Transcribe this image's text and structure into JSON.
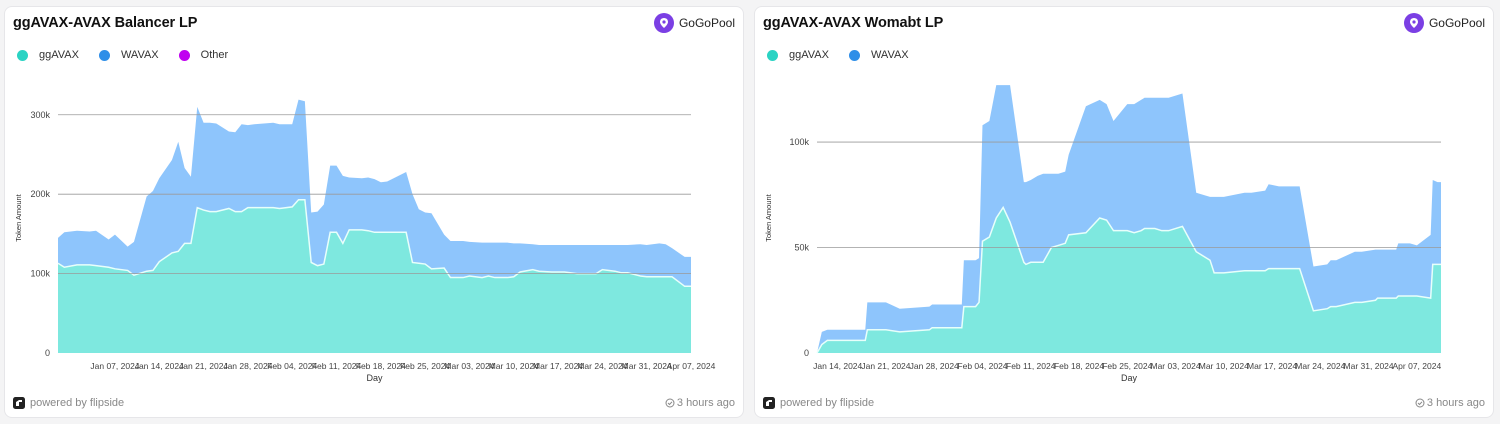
{
  "colors": {
    "ggAVAX": "#7ee8df",
    "WAVAX": "#8ec5fc",
    "Other": "#c000f0",
    "ggAVAX_line": "#e8fffb",
    "grid": "#9a9a9a"
  },
  "cards": [
    {
      "title": "ggAVAX-AVAX Balancer LP",
      "brand": "GoGoPool",
      "footer": {
        "powered": "powered by flipside",
        "updated": "3 hours ago"
      },
      "legend": [
        {
          "label": "ggAVAX",
          "color": "#2ad3c3"
        },
        {
          "label": "WAVAX",
          "color": "#2f8fe8"
        },
        {
          "label": "Other",
          "color": "#c000f0"
        }
      ]
    },
    {
      "title": "ggAVAX-AVAX Womabt LP",
      "brand": "GoGoPool",
      "footer": {
        "powered": "powered by flipside",
        "updated": "3 hours ago"
      },
      "legend": [
        {
          "label": "ggAVAX",
          "color": "#2ad3c3"
        },
        {
          "label": "WAVAX",
          "color": "#2f8fe8"
        }
      ]
    }
  ],
  "chart_data": [
    {
      "type": "area",
      "stacked": true,
      "title": "ggAVAX-AVAX Balancer LP",
      "xlabel": "Day",
      "ylabel": "Token Amount",
      "x_start": "2024-01-02",
      "x_end": "2024-04-11",
      "ylim": [
        0,
        340000
      ],
      "yticks": [
        0,
        100000,
        200000,
        300000
      ],
      "ytick_labels": [
        "0",
        "100k",
        "200k",
        "300k"
      ],
      "xtick_labels": [
        "Jan 07, 2024",
        "Jan 14, 2024",
        "Jan 21, 2024",
        "Jan 28, 2024",
        "Feb 04, 2024",
        "Feb 11, 2024",
        "Feb 18, 2024",
        "Feb 25, 2024",
        "Mar 03, 2024",
        "Mar 10, 2024",
        "Mar 17, 2024",
        "Mar 24, 2024",
        "Mar 31, 2024",
        "Apr 07, 2024"
      ],
      "x_days": [
        0,
        1,
        3,
        5,
        6,
        8,
        9,
        11,
        12,
        14,
        15,
        16,
        18,
        19,
        20,
        21,
        22,
        23,
        24,
        25,
        27,
        28,
        29,
        30,
        31,
        34,
        35,
        37,
        38,
        39,
        40,
        41,
        42,
        43,
        44,
        45,
        46,
        48,
        49,
        50,
        51,
        52,
        55,
        56,
        57,
        58,
        59,
        61,
        62,
        64,
        65,
        67,
        68,
        69,
        71,
        72,
        73,
        75,
        76,
        78,
        79,
        80,
        82,
        83,
        85,
        86,
        88,
        89,
        90,
        92,
        93,
        95,
        96,
        97,
        99,
        100
      ],
      "series": [
        {
          "name": "ggAVAX",
          "values": [
            113000,
            108000,
            111000,
            111000,
            110000,
            108000,
            106000,
            104000,
            98000,
            103000,
            104000,
            115000,
            126000,
            128000,
            138000,
            138000,
            183000,
            180000,
            178000,
            178000,
            182000,
            178000,
            178000,
            183000,
            183000,
            183000,
            182000,
            184000,
            193000,
            193000,
            114000,
            110000,
            112000,
            152000,
            152000,
            138000,
            155000,
            155000,
            154000,
            152000,
            152000,
            152000,
            152000,
            114000,
            113000,
            112000,
            106000,
            107000,
            95000,
            95000,
            97000,
            95000,
            97000,
            95000,
            95000,
            96000,
            102000,
            105000,
            103000,
            102000,
            102000,
            102000,
            100000,
            100000,
            100000,
            105000,
            103000,
            101000,
            101000,
            97000,
            96000,
            96000,
            96000,
            96000,
            84000,
            84000
          ]
        },
        {
          "name": "WAVAX",
          "values": [
            32000,
            44000,
            43000,
            42000,
            44000,
            35000,
            43000,
            30000,
            42000,
            94000,
            100000,
            105000,
            117000,
            138000,
            95000,
            84000,
            127000,
            110000,
            112000,
            111000,
            97000,
            100000,
            110000,
            104000,
            105000,
            107000,
            106000,
            104000,
            126000,
            124000,
            63000,
            68000,
            75000,
            84000,
            84000,
            85000,
            66000,
            65000,
            67000,
            67000,
            63000,
            64000,
            76000,
            86000,
            68000,
            65000,
            70000,
            42000,
            46000,
            46000,
            43000,
            44000,
            42000,
            44000,
            44000,
            42000,
            36000,
            32000,
            33000,
            34000,
            34000,
            34000,
            36000,
            36000,
            36000,
            31000,
            33000,
            35000,
            35000,
            40000,
            40000,
            42000,
            41000,
            36000,
            37000,
            37000
          ]
        },
        {
          "name": "Other",
          "values": []
        }
      ]
    },
    {
      "type": "area",
      "stacked": true,
      "title": "ggAVAX-AVAX Womabt LP",
      "xlabel": "Day",
      "ylabel": "Token Amount",
      "x_start": "2024-01-11",
      "x_end": "2024-04-11",
      "ylim": [
        0,
        128000
      ],
      "yticks": [
        0,
        50000,
        100000
      ],
      "ytick_labels": [
        "0",
        "50k",
        "100k"
      ],
      "xtick_labels": [
        "Jan 14, 2024",
        "Jan 21, 2024",
        "Jan 28, 2024",
        "Feb 04, 2024",
        "Feb 11, 2024",
        "Feb 18, 2024",
        "Feb 25, 2024",
        "Mar 03, 2024",
        "Mar 10, 2024",
        "Mar 17, 2024",
        "Mar 24, 2024",
        "Mar 31, 2024",
        "Apr 07, 2024"
      ],
      "x_days": [
        0,
        0.7,
        1.5,
        5,
        7,
        7.3,
        10,
        12,
        16.3,
        16.7,
        21,
        21.3,
        22,
        23,
        23.5,
        24,
        25,
        26,
        27,
        28,
        30,
        30.3,
        31,
        32,
        32.8,
        34,
        35,
        36,
        36.5,
        39,
        41,
        42,
        43,
        45,
        46,
        47,
        47.5,
        48.5,
        49,
        50,
        51,
        53,
        55,
        57,
        57.6,
        58,
        59,
        62,
        63,
        65,
        65.5,
        67,
        70,
        72,
        74,
        74.5,
        75,
        75.3,
        78,
        79,
        81,
        81.3,
        84,
        84.3,
        86,
        87,
        89,
        89.3,
        90,
        90.5
      ],
      "series": [
        {
          "name": "ggAVAX",
          "values": [
            0,
            4000,
            6000,
            6000,
            6000,
            11000,
            11000,
            10000,
            11000,
            12000,
            12000,
            22000,
            22000,
            22000,
            24000,
            53000,
            55000,
            64000,
            69000,
            62000,
            43000,
            42000,
            43000,
            43000,
            43000,
            50000,
            51000,
            52000,
            56000,
            57000,
            64000,
            63000,
            58000,
            58000,
            57000,
            58000,
            59000,
            59000,
            59000,
            58000,
            58000,
            60000,
            48000,
            44000,
            38000,
            38000,
            38000,
            39000,
            39000,
            39000,
            40000,
            40000,
            40000,
            20000,
            21000,
            22000,
            22000,
            22000,
            24000,
            24000,
            25000,
            26000,
            26000,
            27000,
            27000,
            27000,
            26000,
            42000,
            42000,
            42000
          ]
        },
        {
          "name": "WAVAX",
          "values": [
            0,
            6000,
            5000,
            5000,
            5000,
            13000,
            13000,
            11000,
            11000,
            11000,
            11000,
            22000,
            22000,
            22000,
            21000,
            55000,
            55000,
            63000,
            58000,
            65000,
            38000,
            39000,
            39000,
            41000,
            42000,
            35000,
            34000,
            34000,
            38000,
            60000,
            56000,
            55000,
            52000,
            60000,
            61000,
            62000,
            62000,
            62000,
            62000,
            63000,
            63000,
            63000,
            28000,
            30000,
            36000,
            36000,
            36000,
            37000,
            37000,
            38000,
            40000,
            39000,
            39000,
            21000,
            21000,
            22000,
            22000,
            22000,
            24000,
            24000,
            24000,
            23000,
            23000,
            25000,
            25000,
            24000,
            30000,
            40000,
            39000,
            39000
          ]
        }
      ]
    }
  ]
}
